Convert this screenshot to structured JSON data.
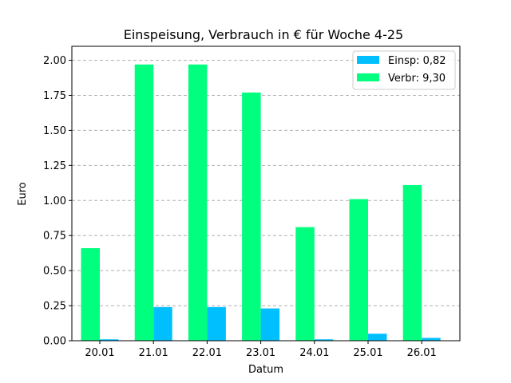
{
  "chart_data": {
    "type": "bar",
    "title": "Einspeisung, Verbrauch in € für Woche 4-25",
    "xlabel": "Datum",
    "ylabel": "Euro",
    "ylim": [
      0,
      2.1
    ],
    "yticks": [
      0.0,
      0.25,
      0.5,
      0.75,
      1.0,
      1.25,
      1.5,
      1.75,
      2.0
    ],
    "ytick_labels": [
      "0.00",
      "0.25",
      "0.50",
      "0.75",
      "1.00",
      "1.25",
      "1.50",
      "1.75",
      "2.00"
    ],
    "categories": [
      "20.01",
      "21.01",
      "22.01",
      "23.01",
      "24.01",
      "25.01",
      "26.01"
    ],
    "grid": "horizontal-dashed",
    "legend_position": "top-right",
    "series": [
      {
        "name": "Verbr: 9,30",
        "color": "#00ff7f",
        "values": [
          0.66,
          1.97,
          1.97,
          1.77,
          0.81,
          1.01,
          1.11
        ],
        "offset": "left"
      },
      {
        "name": "Einsp: 0,82",
        "color": "#00bfff",
        "values": [
          0.01,
          0.24,
          0.24,
          0.23,
          0.01,
          0.05,
          0.02
        ],
        "offset": "right"
      }
    ],
    "legend_order": [
      "Einsp: 0,82",
      "Verbr: 9,30"
    ]
  }
}
